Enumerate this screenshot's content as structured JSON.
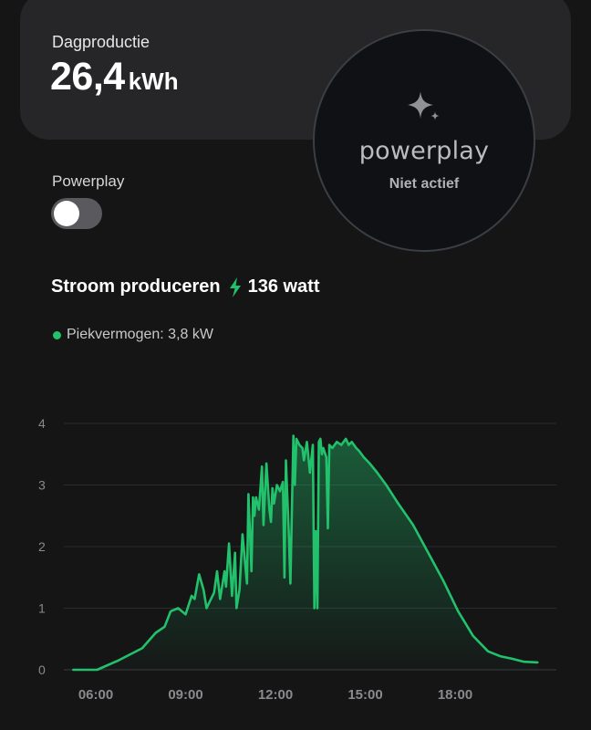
{
  "card": {
    "label": "Dagproductie",
    "value": "26,4",
    "unit": "kWh"
  },
  "powerplay": {
    "logo_text": "powerplay",
    "status": "Niet actief",
    "icon": "sparkle-icon"
  },
  "toggle": {
    "label": "Powerplay",
    "on": false
  },
  "production": {
    "title": "Stroom produceren",
    "icon": "bolt-icon",
    "value": "136 watt"
  },
  "legend": {
    "peak_label": "Piekvermogen: 3,8 kW"
  },
  "colors": {
    "accent": "#22c16b",
    "background": "#151516",
    "card": "#262628"
  },
  "chart_data": {
    "type": "area",
    "ylim": [
      0,
      4
    ],
    "yticks": [
      "0",
      "1",
      "2",
      "3",
      "4"
    ],
    "xticks": [
      {
        "label": "06:00",
        "h": 6
      },
      {
        "label": "09:00",
        "h": 9
      },
      {
        "label": "12:00",
        "h": 12
      },
      {
        "label": "15:00",
        "h": 15
      },
      {
        "label": "18:00",
        "h": 18
      }
    ],
    "grid": true,
    "series": [
      {
        "x": [
          5.25,
          6.05,
          6.75,
          7.55,
          8.0,
          8.3,
          8.5,
          8.75,
          9.0,
          9.2,
          9.3,
          9.45,
          9.6,
          9.7,
          9.75,
          9.95,
          10.05,
          10.15,
          10.3,
          10.35,
          10.45,
          10.55,
          10.65,
          10.7,
          10.8,
          10.9,
          11.05,
          11.1,
          11.2,
          11.25,
          11.3,
          11.35,
          11.45,
          11.55,
          11.6,
          11.7,
          11.8,
          11.85,
          11.9,
          11.95,
          12.05,
          12.15,
          12.25,
          12.3,
          12.35,
          12.45,
          12.5,
          12.6,
          12.65,
          12.7,
          12.8,
          12.9,
          12.95,
          13.05,
          13.15,
          13.25,
          13.3,
          13.35,
          13.4,
          13.45,
          13.5,
          13.55,
          13.6,
          13.7,
          13.75,
          13.8,
          13.9,
          14.05,
          14.2,
          14.35,
          14.45,
          14.55,
          14.7,
          14.8,
          14.95,
          15.15,
          15.4,
          15.7,
          16.1,
          16.6,
          17.1,
          17.6,
          18.1,
          18.6,
          19.1,
          19.5,
          19.9,
          20.3,
          20.75
        ],
        "values": [
          0,
          0,
          0.15,
          0.35,
          0.6,
          0.7,
          0.95,
          1.0,
          0.9,
          1.2,
          1.15,
          1.55,
          1.3,
          1.0,
          1.05,
          1.25,
          1.6,
          1.15,
          1.6,
          1.35,
          2.05,
          1.2,
          1.9,
          1.0,
          1.3,
          2.2,
          1.4,
          2.85,
          1.6,
          2.8,
          2.5,
          2.8,
          2.6,
          3.3,
          2.35,
          3.35,
          2.6,
          2.4,
          2.95,
          2.7,
          3.0,
          2.9,
          3.05,
          1.5,
          3.4,
          2.15,
          1.4,
          3.8,
          3.0,
          3.75,
          3.65,
          3.6,
          3.4,
          3.7,
          3.2,
          3.65,
          1.0,
          2.25,
          1.0,
          3.7,
          3.75,
          3.5,
          3.6,
          3.45,
          2.3,
          3.65,
          3.6,
          3.7,
          3.65,
          3.75,
          3.65,
          3.7,
          3.6,
          3.55,
          3.45,
          3.35,
          3.2,
          3.0,
          2.7,
          2.35,
          1.9,
          1.45,
          0.95,
          0.55,
          0.3,
          0.22,
          0.18,
          0.13,
          0.12
        ]
      }
    ]
  }
}
